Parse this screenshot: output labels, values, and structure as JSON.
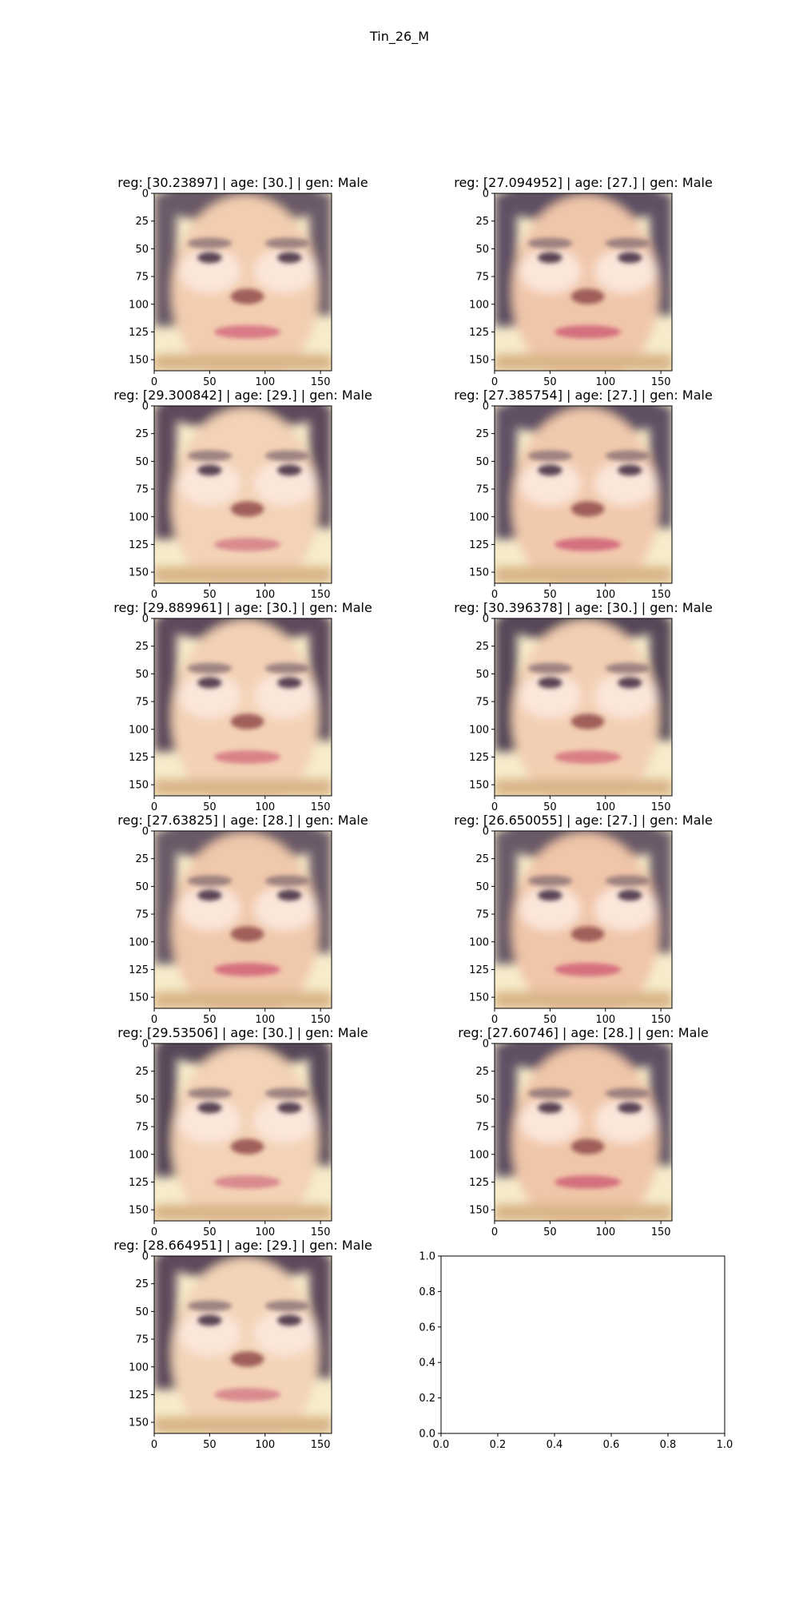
{
  "figure": {
    "suptitle": "Tin_26_M",
    "background": "#ffffff"
  },
  "chart_data": [
    {
      "type": "image",
      "title": "reg: [30.23897] | age: [30.] | gen: Male",
      "xticks": [
        "0",
        "50",
        "100",
        "150"
      ],
      "yticks": [
        "0",
        "25",
        "50",
        "75",
        "100",
        "125",
        "150"
      ],
      "xlim": [
        0,
        160
      ],
      "ylim": [
        160,
        0
      ],
      "face_variant": "A",
      "image_description_colors": {
        "skin": "#f2cdb0",
        "hair": "#6b5a68",
        "lips": "#d97a86"
      }
    },
    {
      "type": "image",
      "title": "reg: [27.094952] | age: [27.] | gen: Male",
      "xticks": [
        "0",
        "50",
        "100",
        "150"
      ],
      "yticks": [
        "0",
        "25",
        "50",
        "75",
        "100",
        "125",
        "150"
      ],
      "xlim": [
        0,
        160
      ],
      "ylim": [
        160,
        0
      ],
      "face_variant": "B",
      "image_description_colors": {
        "skin": "#f0c6aa",
        "hair": "#5e4f63",
        "lips": "#d46f7e"
      }
    },
    {
      "type": "image",
      "title": "reg: [29.300842] | age: [29.] | gen: Male",
      "xticks": [
        "0",
        "50",
        "100",
        "150"
      ],
      "yticks": [
        "0",
        "25",
        "50",
        "75",
        "100",
        "125",
        "150"
      ],
      "xlim": [
        0,
        160
      ],
      "ylim": [
        160,
        0
      ],
      "face_variant": "C",
      "image_description_colors": {
        "skin": "#f3d2b6",
        "hair": "#5b4a5c",
        "lips": "#d98a8e"
      }
    },
    {
      "type": "image",
      "title": "reg: [27.385754] | age: [27.] | gen: Male",
      "xticks": [
        "0",
        "50",
        "100",
        "150"
      ],
      "yticks": [
        "0",
        "25",
        "50",
        "75",
        "100",
        "125",
        "150"
      ],
      "xlim": [
        0,
        160
      ],
      "ylim": [
        160,
        0
      ],
      "face_variant": "B",
      "image_description_colors": {
        "skin": "#f1c9ad",
        "hair": "#5e4f63",
        "lips": "#d4707f"
      }
    },
    {
      "type": "image",
      "title": "reg: [29.889961] | age: [30.] | gen: Male",
      "xticks": [
        "0",
        "50",
        "100",
        "150"
      ],
      "yticks": [
        "0",
        "25",
        "50",
        "75",
        "100",
        "125",
        "150"
      ],
      "xlim": [
        0,
        160
      ],
      "ylim": [
        160,
        0
      ],
      "face_variant": "C",
      "image_description_colors": {
        "skin": "#f3d1b5",
        "hair": "#5b4a5c",
        "lips": "#d98288"
      }
    },
    {
      "type": "image",
      "title": "reg: [30.396378] | age: [30.] | gen: Male",
      "xticks": [
        "0",
        "50",
        "100",
        "150"
      ],
      "yticks": [
        "0",
        "25",
        "50",
        "75",
        "100",
        "125",
        "150"
      ],
      "xlim": [
        0,
        160
      ],
      "ylim": [
        160,
        0
      ],
      "face_variant": "C",
      "image_description_colors": {
        "skin": "#f2cfb2",
        "hair": "#564658",
        "lips": "#d97f86"
      }
    },
    {
      "type": "image",
      "title": "reg: [27.63825] | age: [28.] | gen: Male",
      "xticks": [
        "0",
        "50",
        "100",
        "150"
      ],
      "yticks": [
        "0",
        "25",
        "50",
        "75",
        "100",
        "125",
        "150"
      ],
      "xlim": [
        0,
        160
      ],
      "ylim": [
        160,
        0
      ],
      "face_variant": "A",
      "image_description_colors": {
        "skin": "#f0c8ab",
        "hair": "#6b5a68",
        "lips": "#d6707f"
      }
    },
    {
      "type": "image",
      "title": "reg: [26.650055] | age: [27.] | gen: Male",
      "xticks": [
        "0",
        "50",
        "100",
        "150"
      ],
      "yticks": [
        "0",
        "25",
        "50",
        "75",
        "100",
        "125",
        "150"
      ],
      "xlim": [
        0,
        160
      ],
      "ylim": [
        160,
        0
      ],
      "face_variant": "A",
      "image_description_colors": {
        "skin": "#f0c5a8",
        "hair": "#6b5a68",
        "lips": "#d6707f"
      }
    },
    {
      "type": "image",
      "title": "reg: [29.53506] | age: [30.] | gen: Male",
      "xticks": [
        "0",
        "50",
        "100",
        "150"
      ],
      "yticks": [
        "0",
        "25",
        "50",
        "75",
        "100",
        "125",
        "150"
      ],
      "xlim": [
        0,
        160
      ],
      "ylim": [
        160,
        0
      ],
      "face_variant": "C",
      "image_description_colors": {
        "skin": "#f3d2b6",
        "hair": "#564658",
        "lips": "#d98a8e"
      }
    },
    {
      "type": "image",
      "title": "reg: [27.60746] | age: [28.] | gen: Male",
      "xticks": [
        "0",
        "50",
        "100",
        "150"
      ],
      "yticks": [
        "0",
        "25",
        "50",
        "75",
        "100",
        "125",
        "150"
      ],
      "xlim": [
        0,
        160
      ],
      "ylim": [
        160,
        0
      ],
      "face_variant": "B",
      "image_description_colors": {
        "skin": "#f0c6a9",
        "hair": "#5e4f63",
        "lips": "#d46f7e"
      }
    },
    {
      "type": "image",
      "title": "reg: [28.664951] | age: [29.] | gen: Male",
      "xticks": [
        "0",
        "50",
        "100",
        "150"
      ],
      "yticks": [
        "0",
        "25",
        "50",
        "75",
        "100",
        "125",
        "150"
      ],
      "xlim": [
        0,
        160
      ],
      "ylim": [
        160,
        0
      ],
      "face_variant": "C",
      "image_description_colors": {
        "skin": "#f3d4b8",
        "hair": "#5b4a5c",
        "lips": "#d98a8e"
      }
    },
    {
      "type": "empty",
      "title": "",
      "xticks": [
        "0.0",
        "0.2",
        "0.4",
        "0.6",
        "0.8",
        "1.0"
      ],
      "yticks": [
        "0.0",
        "0.2",
        "0.4",
        "0.6",
        "0.8",
        "1.0"
      ],
      "xlim": [
        0,
        1
      ],
      "ylim": [
        0,
        1
      ]
    }
  ]
}
